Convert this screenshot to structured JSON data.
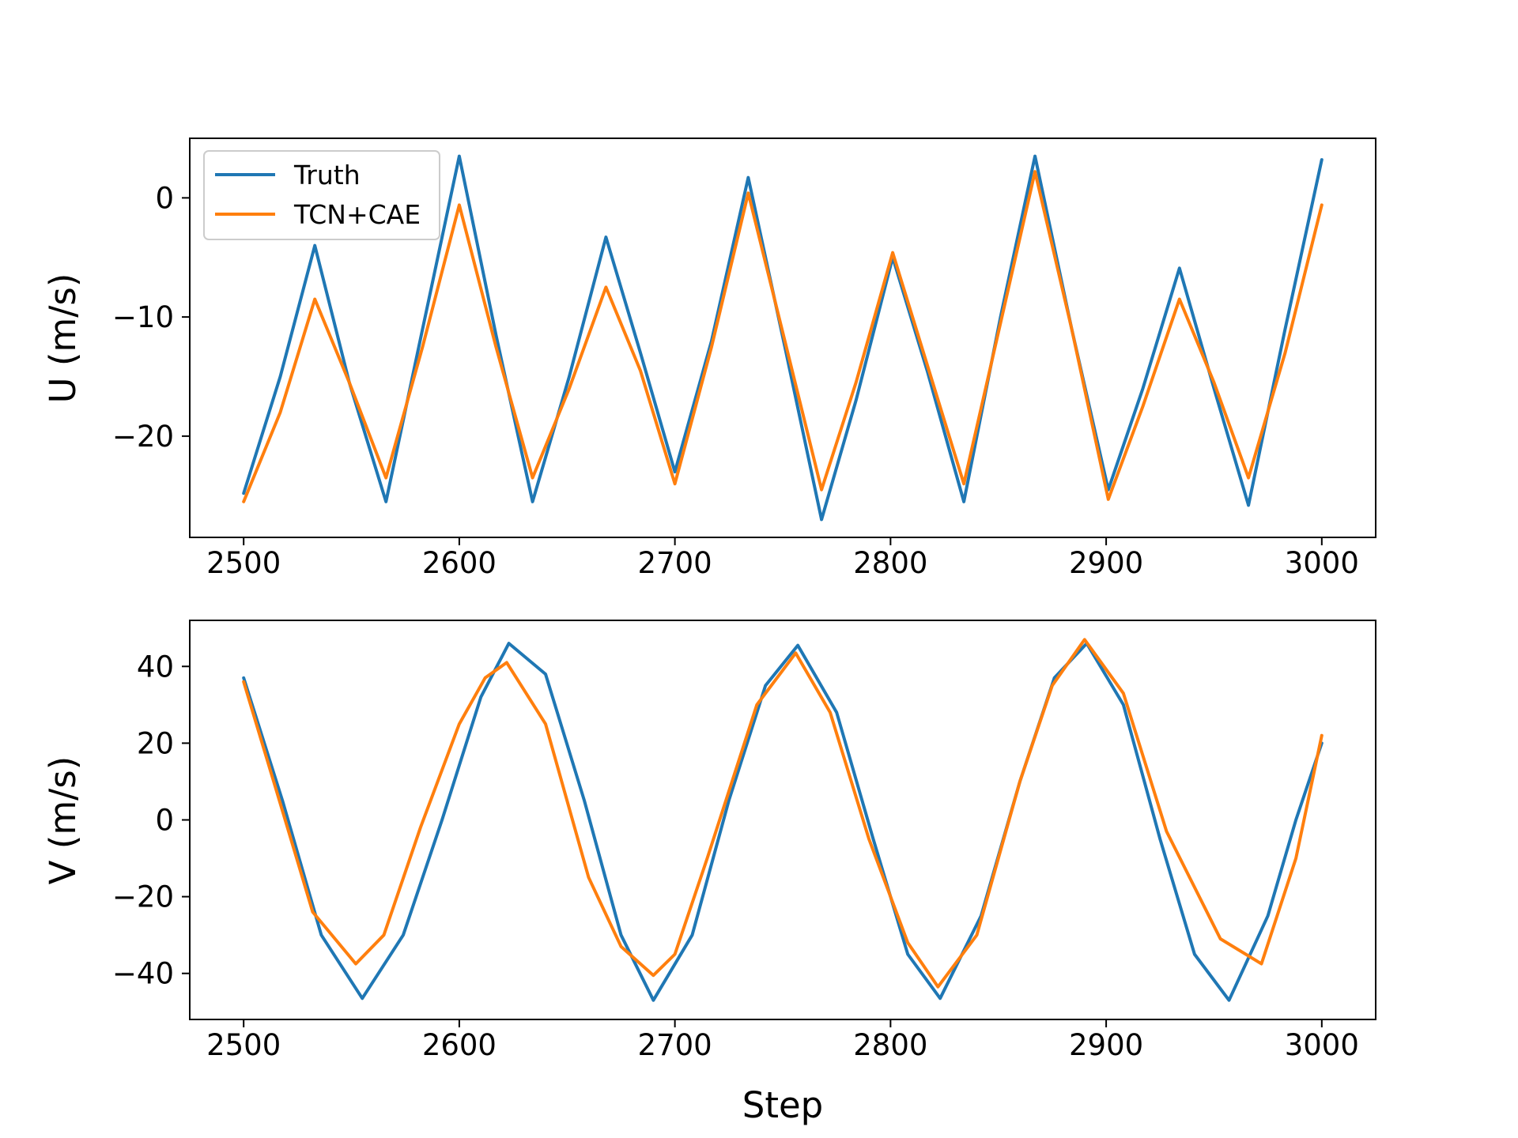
{
  "chart_data": [
    {
      "type": "line",
      "title": "",
      "xlabel": "",
      "ylabel": "U (m/s)",
      "xlim": [
        2475,
        3025
      ],
      "ylim": [
        -28.5,
        5.0
      ],
      "xticks": [
        2500,
        2600,
        2700,
        2800,
        2900,
        3000
      ],
      "xtick_labels": [
        "2500",
        "2600",
        "2700",
        "2800",
        "2900",
        "3000"
      ],
      "yticks": [
        0,
        -10,
        -20
      ],
      "ytick_labels": [
        "0",
        "−10",
        "−20"
      ],
      "legend": {
        "placement": "upper left",
        "entries": [
          "Truth",
          "TCN+CAE"
        ]
      },
      "grid": false,
      "series": [
        {
          "name": "Truth",
          "color": "#1f77b4",
          "x": [
            2500,
            2517,
            2533,
            2549,
            2566,
            2583,
            2600,
            2617,
            2634,
            2651,
            2668,
            2684,
            2700,
            2717,
            2734,
            2751,
            2768,
            2784,
            2801,
            2817,
            2834,
            2851,
            2867,
            2884,
            2901,
            2917,
            2934,
            2950,
            2966,
            2983,
            3000
          ],
          "y": [
            -24.8,
            -15.0,
            -4.0,
            -15.5,
            -25.5,
            -11.0,
            3.5,
            -11.5,
            -25.5,
            -15.0,
            -3.3,
            -13.0,
            -23.0,
            -12.0,
            1.7,
            -12.5,
            -27.0,
            -17.0,
            -5.0,
            -14.5,
            -25.5,
            -10.0,
            3.5,
            -11.0,
            -24.5,
            -16.0,
            -5.9,
            -16.0,
            -25.8,
            -11.0,
            3.2
          ]
        },
        {
          "name": "TCN+CAE",
          "color": "#ff7f0e",
          "x": [
            2500,
            2517,
            2533,
            2549,
            2566,
            2583,
            2600,
            2617,
            2634,
            2651,
            2668,
            2684,
            2700,
            2717,
            2734,
            2751,
            2768,
            2784,
            2801,
            2817,
            2834,
            2851,
            2867,
            2884,
            2901,
            2917,
            2934,
            2950,
            2966,
            2983,
            3000
          ],
          "y": [
            -25.5,
            -18.0,
            -8.5,
            -15.5,
            -23.5,
            -12.5,
            -0.6,
            -12.5,
            -23.5,
            -16.0,
            -7.5,
            -14.5,
            -24.0,
            -12.5,
            0.4,
            -12.0,
            -24.5,
            -15.5,
            -4.6,
            -14.0,
            -24.0,
            -10.5,
            2.2,
            -11.0,
            -25.3,
            -17.5,
            -8.5,
            -15.5,
            -23.5,
            -13.0,
            -0.6
          ]
        }
      ]
    },
    {
      "type": "line",
      "title": "",
      "xlabel": "Step",
      "ylabel": "V (m/s)",
      "xlim": [
        2475,
        3025
      ],
      "ylim": [
        -52,
        52
      ],
      "xticks": [
        2500,
        2600,
        2700,
        2800,
        2900,
        3000
      ],
      "xtick_labels": [
        "2500",
        "2600",
        "2700",
        "2800",
        "2900",
        "3000"
      ],
      "yticks": [
        40,
        20,
        0,
        -20,
        -40
      ],
      "ytick_labels": [
        "40",
        "20",
        "0",
        "−20",
        "−40"
      ],
      "grid": false,
      "series": [
        {
          "name": "Truth",
          "color": "#1f77b4",
          "x": [
            2500,
            2518,
            2536,
            2555,
            2574,
            2592,
            2610,
            2623,
            2640,
            2658,
            2675,
            2690,
            2708,
            2725,
            2742,
            2757,
            2775,
            2792,
            2808,
            2823,
            2842,
            2860,
            2876,
            2891,
            2908,
            2925,
            2941,
            2957,
            2975,
            2988,
            3000
          ],
          "y": [
            37.0,
            5.0,
            -30.0,
            -46.5,
            -30.0,
            0.0,
            32.0,
            46.0,
            38.0,
            5.0,
            -30.0,
            -47.0,
            -30.0,
            5.0,
            35.0,
            45.5,
            28.0,
            -5.0,
            -35.0,
            -46.5,
            -25.0,
            10.0,
            37.0,
            46.0,
            30.0,
            -5.0,
            -35.0,
            -47.0,
            -25.0,
            0.0,
            20.0
          ]
        },
        {
          "name": "TCN+CAE",
          "color": "#ff7f0e",
          "x": [
            2500,
            2515,
            2532,
            2552,
            2565,
            2582,
            2600,
            2612,
            2622,
            2640,
            2660,
            2675,
            2690,
            2700,
            2715,
            2738,
            2756,
            2772,
            2790,
            2808,
            2822,
            2840,
            2860,
            2875,
            2890,
            2908,
            2928,
            2953,
            2972,
            2988,
            3000
          ],
          "y": [
            36.0,
            8.0,
            -24.0,
            -37.5,
            -30.0,
            -2.0,
            25.0,
            37.0,
            41.0,
            25.0,
            -15.0,
            -33.0,
            -40.5,
            -35.0,
            -10.0,
            30.0,
            43.5,
            28.0,
            -5.0,
            -32.0,
            -43.5,
            -30.0,
            10.0,
            35.0,
            47.0,
            33.0,
            -3.0,
            -31.0,
            -37.5,
            -10.0,
            22.0
          ]
        }
      ]
    }
  ]
}
